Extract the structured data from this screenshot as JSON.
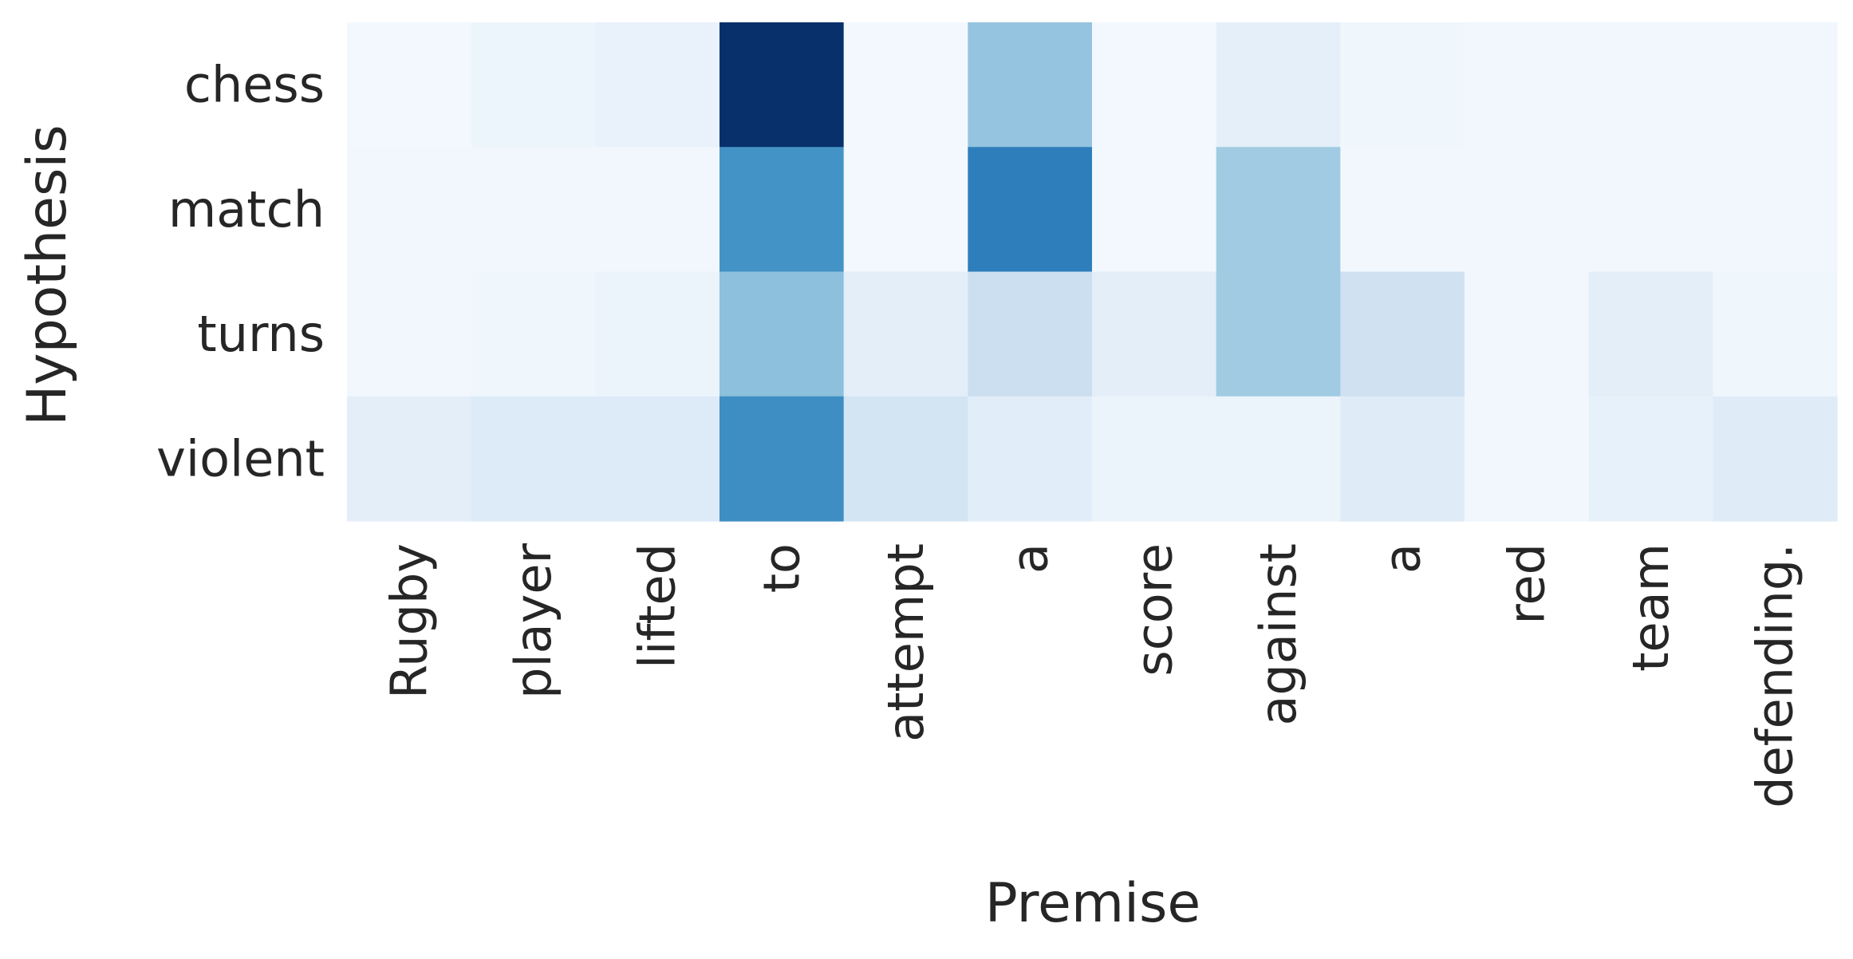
{
  "chart_data": {
    "type": "heatmap",
    "title": "",
    "xlabel": "Premise",
    "ylabel": "Hypothesis",
    "x_categories": [
      "Rugby",
      "player",
      "lifted",
      "to",
      "attempt",
      "a",
      "score",
      "against",
      "a",
      "red",
      "team",
      "defending."
    ],
    "y_categories": [
      "chess",
      "match",
      "turns",
      "violent"
    ],
    "colormap": "Blues",
    "colorbar": false,
    "value_range": [
      0,
      1
    ],
    "values": [
      [
        0.02,
        0.05,
        0.07,
        1.0,
        0.02,
        0.4,
        0.02,
        0.09,
        0.04,
        0.03,
        0.03,
        0.03
      ],
      [
        0.03,
        0.03,
        0.03,
        0.62,
        0.02,
        0.7,
        0.02,
        0.37,
        0.03,
        0.03,
        0.03,
        0.03
      ],
      [
        0.03,
        0.04,
        0.06,
        0.42,
        0.1,
        0.22,
        0.1,
        0.37,
        0.2,
        0.03,
        0.1,
        0.04
      ],
      [
        0.1,
        0.13,
        0.13,
        0.64,
        0.18,
        0.11,
        0.06,
        0.06,
        0.12,
        0.03,
        0.08,
        0.12
      ]
    ]
  }
}
